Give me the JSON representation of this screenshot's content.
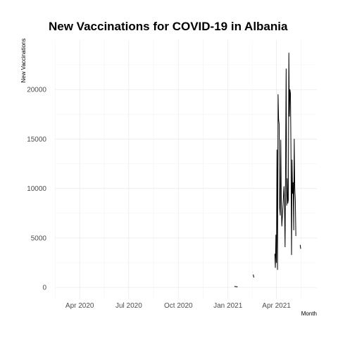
{
  "chart_data": {
    "type": "line",
    "title": "New Vaccinations for COVID-19 in Albania",
    "xlabel": "Month",
    "ylabel": "New Vaccinations",
    "x_range": [
      "2020-02-15",
      "2021-06-15"
    ],
    "ylim": [
      -1200,
      25000
    ],
    "y_ticks": [
      0,
      5000,
      10000,
      15000,
      20000
    ],
    "y_tick_labels": [
      "0",
      "5000",
      "10000",
      "15000",
      "20000"
    ],
    "x_ticks": [
      "2020-04-01",
      "2020-07-01",
      "2020-10-01",
      "2021-01-01",
      "2021-04-01"
    ],
    "x_tick_labels": [
      "Apr 2020",
      "Jul 2020",
      "Oct 2020",
      "Jan 2021",
      "Apr 2021"
    ],
    "grid": true,
    "series": [
      {
        "color": "#000000",
        "segments": [
          [
            [
              "2021-01-13",
              100
            ],
            [
              "2021-01-15",
              80
            ],
            [
              "2021-01-17",
              60
            ],
            [
              "2021-01-19",
              70
            ]
          ],
          [
            [
              "2021-02-17",
              1300
            ],
            [
              "2021-02-18",
              1000
            ]
          ],
          [
            [
              "2021-03-29",
              3400
            ],
            [
              "2021-03-30",
              2000
            ],
            [
              "2021-03-31",
              5300
            ],
            [
              "2021-04-01",
              2500
            ],
            [
              "2021-04-02",
              13900
            ],
            [
              "2021-04-03",
              1800
            ],
            [
              "2021-04-04",
              19500
            ],
            [
              "2021-04-05",
              17000
            ],
            [
              "2021-04-06",
              16500
            ],
            [
              "2021-04-07",
              8000
            ],
            [
              "2021-04-08",
              7300
            ],
            [
              "2021-04-09",
              14900
            ],
            [
              "2021-04-10",
              8500
            ],
            [
              "2021-04-11",
              6200
            ],
            [
              "2021-04-15",
              10200
            ],
            [
              "2021-04-16",
              8200
            ],
            [
              "2021-04-17",
              4100
            ],
            [
              "2021-04-18",
              13000
            ],
            [
              "2021-04-19",
              22100
            ],
            [
              "2021-04-20",
              8300
            ],
            [
              "2021-04-21",
              11000
            ],
            [
              "2021-04-22",
              8500
            ],
            [
              "2021-04-23",
              8800
            ],
            [
              "2021-04-24",
              23700
            ],
            [
              "2021-04-25",
              17300
            ],
            [
              "2021-04-26",
              20000
            ],
            [
              "2021-04-27",
              19600
            ],
            [
              "2021-04-28",
              13500
            ],
            [
              "2021-04-29",
              3300
            ],
            [
              "2021-04-30",
              12900
            ],
            [
              "2021-05-01",
              9500
            ],
            [
              "2021-05-02",
              10600
            ],
            [
              "2021-05-03",
              5800
            ],
            [
              "2021-05-04",
              15000
            ],
            [
              "2021-05-05",
              10000
            ],
            [
              "2021-05-06",
              8900
            ],
            [
              "2021-05-07",
              5200
            ]
          ],
          [
            [
              "2021-05-15",
              4300
            ],
            [
              "2021-05-16",
              3900
            ]
          ]
        ]
      }
    ]
  }
}
